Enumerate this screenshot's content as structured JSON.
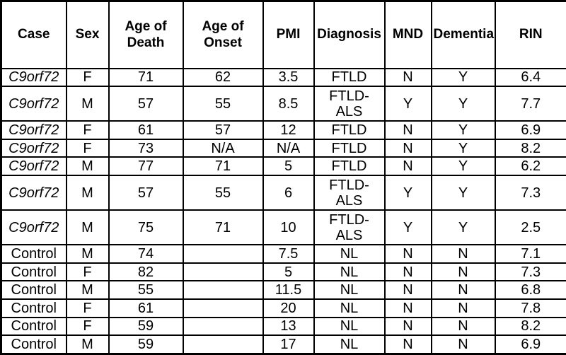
{
  "page": {
    "background_color": "#ffffff",
    "border_color": "#000000",
    "text_color": "#000000"
  },
  "table": {
    "gene_label": "C9orf72",
    "columns": [
      {
        "key": "case",
        "label": "Case"
      },
      {
        "key": "sex",
        "label": "Sex"
      },
      {
        "key": "age_of_death",
        "label": "Age of Death"
      },
      {
        "key": "age_of_onset",
        "label": "Age of Onset"
      },
      {
        "key": "pmi",
        "label": "PMI"
      },
      {
        "key": "diagnosis",
        "label": "Diagnosis"
      },
      {
        "key": "mnd",
        "label": "MND"
      },
      {
        "key": "dementia",
        "label": "Dementia"
      },
      {
        "key": "rin",
        "label": "RIN"
      }
    ],
    "rows": [
      [
        "C9orf72",
        "F",
        "71",
        "62",
        "3.5",
        "FTLD",
        "N",
        "Y",
        "6.4"
      ],
      [
        "C9orf72",
        "M",
        "57",
        "55",
        "8.5",
        "FTLD-ALS",
        "Y",
        "Y",
        "7.7"
      ],
      [
        "C9orf72",
        "F",
        "61",
        "57",
        "12",
        "FTLD",
        "N",
        "Y",
        "6.9"
      ],
      [
        "C9orf72",
        "F",
        "73",
        "N/A",
        "N/A",
        "FTLD",
        "N",
        "Y",
        "8.2"
      ],
      [
        "C9orf72",
        "M",
        "77",
        "71",
        "5",
        "FTLD",
        "N",
        "Y",
        "6.2"
      ],
      [
        "C9orf72",
        "M",
        "57",
        "55",
        "6",
        "FTLD-ALS",
        "Y",
        "Y",
        "7.3"
      ],
      [
        "C9orf72",
        "M",
        "75",
        "71",
        "10",
        "FTLD-ALS",
        "Y",
        "Y",
        "2.5"
      ],
      [
        "Control",
        "M",
        "74",
        "",
        "7.5",
        "NL",
        "N",
        "N",
        "7.1"
      ],
      [
        "Control",
        "F",
        "82",
        "",
        "5",
        "NL",
        "N",
        "N",
        "7.3"
      ],
      [
        "Control",
        "M",
        "55",
        "",
        "11.5",
        "NL",
        "N",
        "N",
        "6.8"
      ],
      [
        "Control",
        "F",
        "61",
        "",
        "20",
        "NL",
        "N",
        "N",
        "7.8"
      ],
      [
        "Control",
        "F",
        "59",
        "",
        "13",
        "NL",
        "N",
        "N",
        "8.2"
      ],
      [
        "Control",
        "M",
        "59",
        "",
        "17",
        "NL",
        "N",
        "N",
        "6.9"
      ]
    ]
  }
}
